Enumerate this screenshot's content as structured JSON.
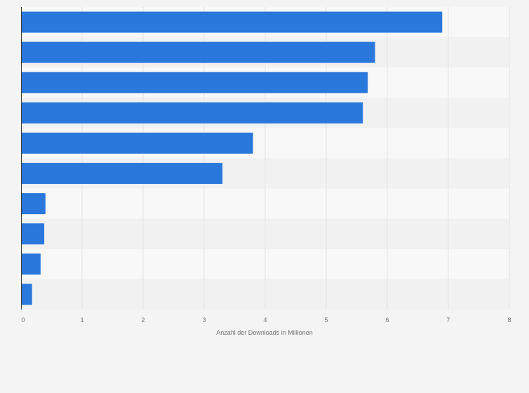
{
  "chart_data": {
    "type": "bar",
    "orientation": "horizontal",
    "categories": [
      "",
      "",
      "",
      "",
      "",
      "",
      "",
      "",
      "",
      ""
    ],
    "values": [
      6.9,
      5.8,
      5.68,
      5.6,
      3.8,
      3.3,
      0.4,
      0.38,
      0.32,
      0.18
    ],
    "title": "",
    "xlabel": "Anzahl der Downloads in Millionen",
    "ylabel": "",
    "xlim": [
      0,
      8
    ],
    "xticks": [
      "0",
      "1",
      "2",
      "3",
      "4",
      "5",
      "6",
      "7",
      "8"
    ],
    "grid": true,
    "colors": {
      "bar": "#2a78dc",
      "background": "#f4f4f4",
      "band_light": "#f8f8f8",
      "band_dark": "#f1f1f1",
      "grid": "#e2e2e2",
      "axis": "#3a3a3a",
      "text": "#6f6f6f"
    }
  }
}
